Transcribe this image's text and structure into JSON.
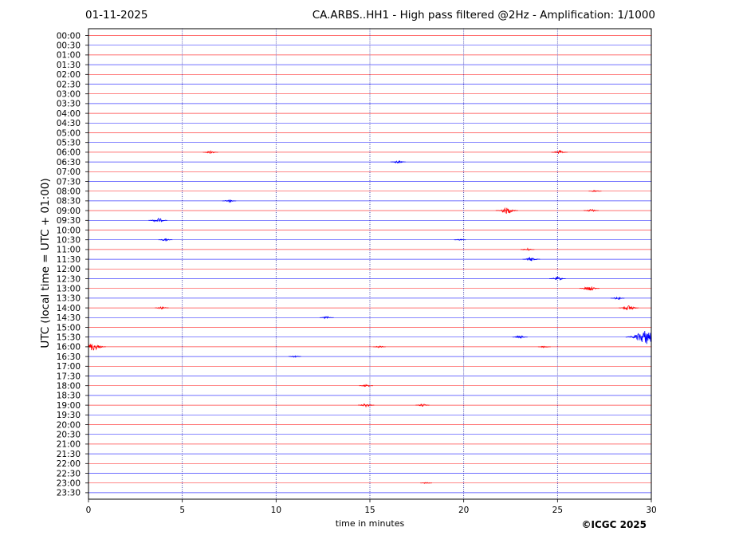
{
  "header": {
    "date": "01-11-2025",
    "station": "CA.ARBS..HH1 - High pass filtered @2Hz - Amplification: 1/1000"
  },
  "footer": {
    "copyright": "©ICGC 2025"
  },
  "chart_data": {
    "type": "line",
    "xlabel": "time in minutes",
    "ylabel": "UTC (local time = UTC + 01:00)",
    "xlim": [
      0,
      30
    ],
    "x_ticks": [
      0,
      5,
      10,
      15,
      20,
      25,
      30
    ],
    "grid": "vertical dotted lines at 5-minute intervals",
    "series_colors": [
      "#ff0000",
      "#0000ff"
    ],
    "row_labels": [
      "00:00",
      "00:30",
      "01:00",
      "01:30",
      "02:00",
      "02:30",
      "03:00",
      "03:30",
      "04:00",
      "04:30",
      "05:00",
      "05:30",
      "06:00",
      "06:30",
      "07:00",
      "07:30",
      "08:00",
      "08:30",
      "09:00",
      "09:30",
      "10:00",
      "10:30",
      "11:00",
      "11:30",
      "12:00",
      "12:30",
      "13:00",
      "13:30",
      "14:00",
      "14:30",
      "15:00",
      "15:30",
      "16:00",
      "16:30",
      "17:00",
      "17:30",
      "18:00",
      "18:30",
      "19:00",
      "19:30",
      "20:00",
      "20:30",
      "21:00",
      "21:30",
      "22:00",
      "22:30",
      "23:00",
      "23:30"
    ],
    "events": [
      {
        "row": "06:00",
        "x": 6.5,
        "amplitude": 0.3
      },
      {
        "row": "06:00",
        "x": 25.1,
        "amplitude": 0.35
      },
      {
        "row": "06:30",
        "x": 16.5,
        "amplitude": 0.3
      },
      {
        "row": "08:00",
        "x": 27.0,
        "amplitude": 0.2
      },
      {
        "row": "08:30",
        "x": 7.5,
        "amplitude": 0.25
      },
      {
        "row": "09:00",
        "x": 22.3,
        "amplitude": 0.6
      },
      {
        "row": "09:00",
        "x": 26.8,
        "amplitude": 0.3
      },
      {
        "row": "09:30",
        "x": 3.7,
        "amplitude": 0.45
      },
      {
        "row": "10:30",
        "x": 4.1,
        "amplitude": 0.25
      },
      {
        "row": "10:30",
        "x": 19.8,
        "amplitude": 0.15
      },
      {
        "row": "11:00",
        "x": 23.4,
        "amplitude": 0.25
      },
      {
        "row": "11:30",
        "x": 23.6,
        "amplitude": 0.4
      },
      {
        "row": "12:30",
        "x": 25.0,
        "amplitude": 0.35
      },
      {
        "row": "13:00",
        "x": 26.7,
        "amplitude": 0.5
      },
      {
        "row": "13:30",
        "x": 28.2,
        "amplitude": 0.25
      },
      {
        "row": "14:00",
        "x": 3.9,
        "amplitude": 0.25
      },
      {
        "row": "14:00",
        "x": 28.8,
        "amplitude": 0.5
      },
      {
        "row": "14:30",
        "x": 12.7,
        "amplitude": 0.25
      },
      {
        "row": "15:30",
        "x": 23.0,
        "amplitude": 0.3
      },
      {
        "row": "15:30",
        "x": 29.8,
        "amplitude": 1.5
      },
      {
        "row": "16:00",
        "x": 0.2,
        "amplitude": 0.8
      },
      {
        "row": "16:00",
        "x": 15.5,
        "amplitude": 0.2
      },
      {
        "row": "16:00",
        "x": 24.3,
        "amplitude": 0.2
      },
      {
        "row": "16:30",
        "x": 11.0,
        "amplitude": 0.2
      },
      {
        "row": "18:00",
        "x": 14.8,
        "amplitude": 0.25
      },
      {
        "row": "19:00",
        "x": 14.8,
        "amplitude": 0.35
      },
      {
        "row": "19:00",
        "x": 17.8,
        "amplitude": 0.25
      },
      {
        "row": "23:00",
        "x": 18.0,
        "amplitude": 0.15
      }
    ]
  }
}
